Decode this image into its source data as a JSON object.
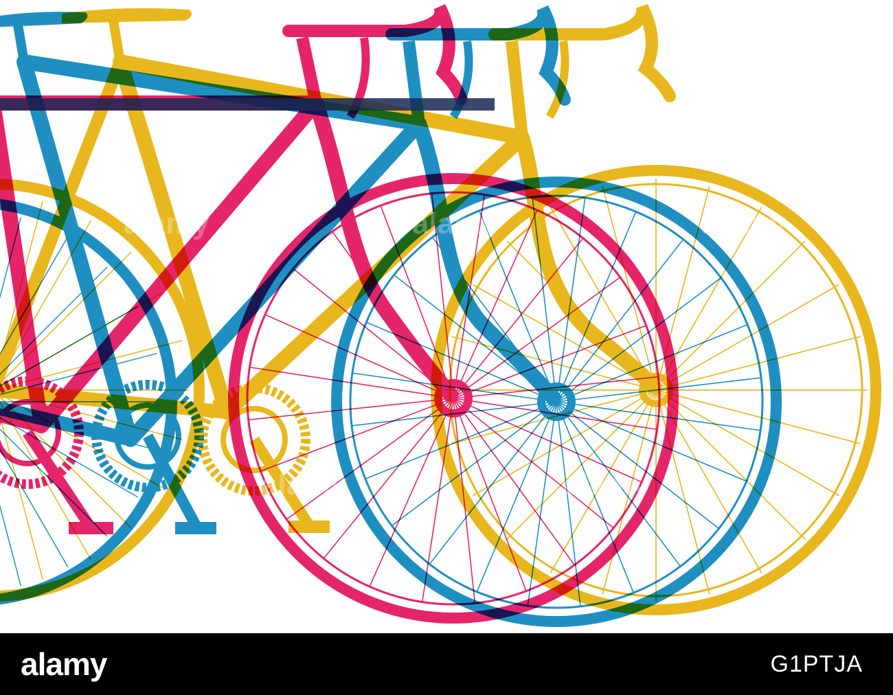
{
  "footer": {
    "brand": "alamy",
    "image_id": "G1PTJA"
  },
  "watermark": {
    "text": "alamy"
  },
  "colors": {
    "background": "#ffffff",
    "footer": "#000000",
    "pink": "#e5256a",
    "blue": "#1f8fc2",
    "yellow": "#e8b71e",
    "dark_overlap": "#1a2a55"
  },
  "illustration": {
    "subject": "three-overlapping-road-bicycles",
    "bike_colors": [
      "pink",
      "blue",
      "yellow"
    ]
  }
}
